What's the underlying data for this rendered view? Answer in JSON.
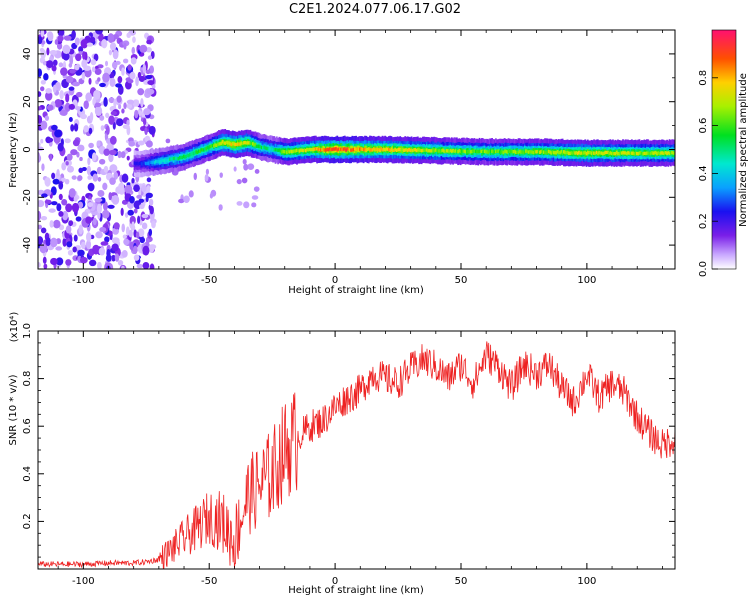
{
  "title": "C2E1.2024.077.06.17.G02",
  "colors": {
    "snr_line": "#ee2222",
    "axis": "#000000"
  },
  "chart_data": [
    {
      "type": "heatmap",
      "name": "spectrogram",
      "xlabel": "Height of straight line (km)",
      "ylabel": "Frequency (Hz)",
      "xlim": [
        -118,
        135
      ],
      "ylim": [
        -50,
        50
      ],
      "xticks": [
        -100,
        -50,
        0,
        50,
        100
      ],
      "yticks": [
        -40,
        -20,
        0,
        20,
        40
      ],
      "colorbar": {
        "label": "Normalized spectral amplitude",
        "range": [
          0.0,
          1.0
        ],
        "ticks": [
          "0.0",
          "0.2",
          "0.4",
          "0.6",
          "0.8"
        ],
        "tick_values": [
          0.0,
          0.2,
          0.4,
          0.6,
          0.8
        ]
      },
      "ridge": {
        "x": [
          -78,
          -70,
          -60,
          -50,
          -45,
          -40,
          -35,
          -30,
          -25,
          -20,
          -10,
          0,
          10,
          20,
          40,
          60,
          80,
          100,
          120,
          135
        ],
        "freq": [
          -6,
          -5,
          -3,
          1,
          3,
          2,
          3,
          1,
          0,
          -1,
          0,
          0,
          0,
          0,
          -0.5,
          -1,
          -1,
          -1.5,
          -1.5,
          -1.5
        ],
        "amplitude": [
          0.25,
          0.45,
          0.55,
          0.6,
          0.75,
          0.8,
          0.75,
          0.55,
          0.5,
          0.7,
          0.75,
          0.95,
          0.85,
          0.8,
          0.7,
          0.65,
          0.7,
          0.75,
          0.7,
          0.7
        ]
      }
    },
    {
      "type": "line",
      "name": "snr",
      "xlabel": "Height of straight line (km)",
      "ylabel": "SNR (10 * v/v)",
      "y_multiplier": "(x10⁴)",
      "xlim": [
        -118,
        135
      ],
      "ylim": [
        0.0,
        1.0
      ],
      "xticks": [
        -100,
        -50,
        0,
        50,
        100
      ],
      "yticks": [
        0.2,
        0.4,
        0.6,
        0.8,
        1.0
      ],
      "ytick_labels": [
        "0.2",
        "0.4",
        "0.6",
        "0.8",
        "1.0"
      ],
      "series": [
        {
          "x": [
            -118,
            -110,
            -100,
            -90,
            -80,
            -75,
            -70,
            -65,
            -60,
            -55,
            -50,
            -45,
            -40,
            -35,
            -30,
            -25,
            -20,
            -15,
            -10,
            -5,
            0,
            5,
            10,
            15,
            20,
            25,
            30,
            35,
            40,
            45,
            50,
            55,
            60,
            65,
            70,
            75,
            80,
            85,
            90,
            95,
            100,
            105,
            110,
            115,
            120,
            125,
            130,
            135
          ],
          "values": [
            0.02,
            0.02,
            0.02,
            0.025,
            0.025,
            0.03,
            0.04,
            0.08,
            0.13,
            0.17,
            0.22,
            0.2,
            0.12,
            0.3,
            0.35,
            0.4,
            0.5,
            0.55,
            0.6,
            0.62,
            0.68,
            0.72,
            0.75,
            0.82,
            0.8,
            0.78,
            0.84,
            0.88,
            0.85,
            0.8,
            0.86,
            0.78,
            0.9,
            0.85,
            0.76,
            0.86,
            0.82,
            0.86,
            0.76,
            0.7,
            0.82,
            0.72,
            0.78,
            0.74,
            0.64,
            0.57,
            0.52,
            0.55
          ]
        }
      ]
    }
  ]
}
